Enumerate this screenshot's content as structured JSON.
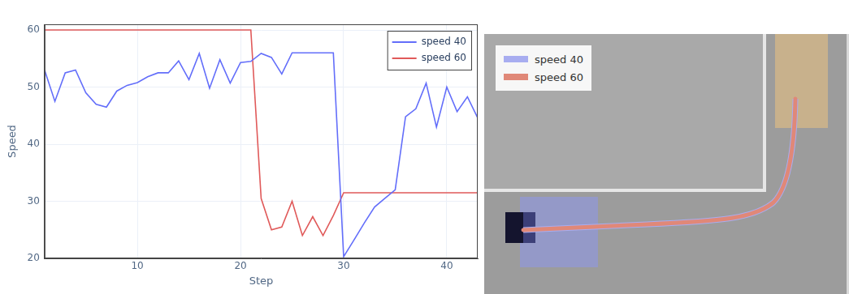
{
  "chart_data": {
    "type": "line",
    "xlabel": "Step",
    "ylabel": "Speed",
    "x": [
      1,
      2,
      3,
      4,
      5,
      6,
      7,
      8,
      9,
      10,
      11,
      12,
      13,
      14,
      15,
      16,
      17,
      18,
      19,
      20,
      21,
      22,
      23,
      24,
      25,
      26,
      27,
      28,
      29,
      30,
      31,
      32,
      33,
      34,
      35,
      36,
      37,
      38,
      39,
      40,
      41,
      42,
      43
    ],
    "series": [
      {
        "name": "speed 40",
        "color": "#636efa",
        "values": [
          53,
          47.5,
          52.5,
          53,
          49,
          47,
          46.5,
          49.3,
          50.3,
          50.8,
          51.8,
          52.5,
          52.5,
          54.6,
          51.3,
          55.9,
          49.8,
          54.8,
          50.7,
          54.3,
          54.5,
          55.9,
          55.2,
          52.3,
          56,
          56,
          56,
          56,
          56,
          20.3,
          23.2,
          26.2,
          29,
          30.5,
          32,
          44.8,
          46.2,
          50.7,
          43,
          50,
          45.7,
          48.3,
          44.6
        ]
      },
      {
        "name": "speed 60",
        "color": "#e05a5a",
        "values": [
          60,
          60,
          60,
          60,
          60,
          60,
          60,
          60,
          60,
          60,
          60,
          60,
          60,
          60,
          60,
          60,
          60,
          60,
          60,
          60,
          60,
          30.5,
          25,
          25.5,
          30,
          24,
          27.3,
          24,
          27.5,
          31.5,
          31.5,
          31.5,
          31.5,
          31.5,
          31.5,
          31.5,
          31.5,
          31.5,
          31.5,
          31.5,
          31.5,
          31.5,
          31.5
        ]
      }
    ],
    "xlim": [
      1,
      43
    ],
    "xticks": [
      10,
      20,
      30,
      40
    ],
    "ylim": [
      20,
      61
    ],
    "yticks": [
      20,
      30,
      40,
      50,
      60
    ],
    "grid": true,
    "legend": "upper right"
  },
  "scene": {
    "legend": [
      {
        "name": "speed 40",
        "color": "#a8adf0"
      },
      {
        "name": "speed 60",
        "color": "#e08878"
      }
    ]
  }
}
